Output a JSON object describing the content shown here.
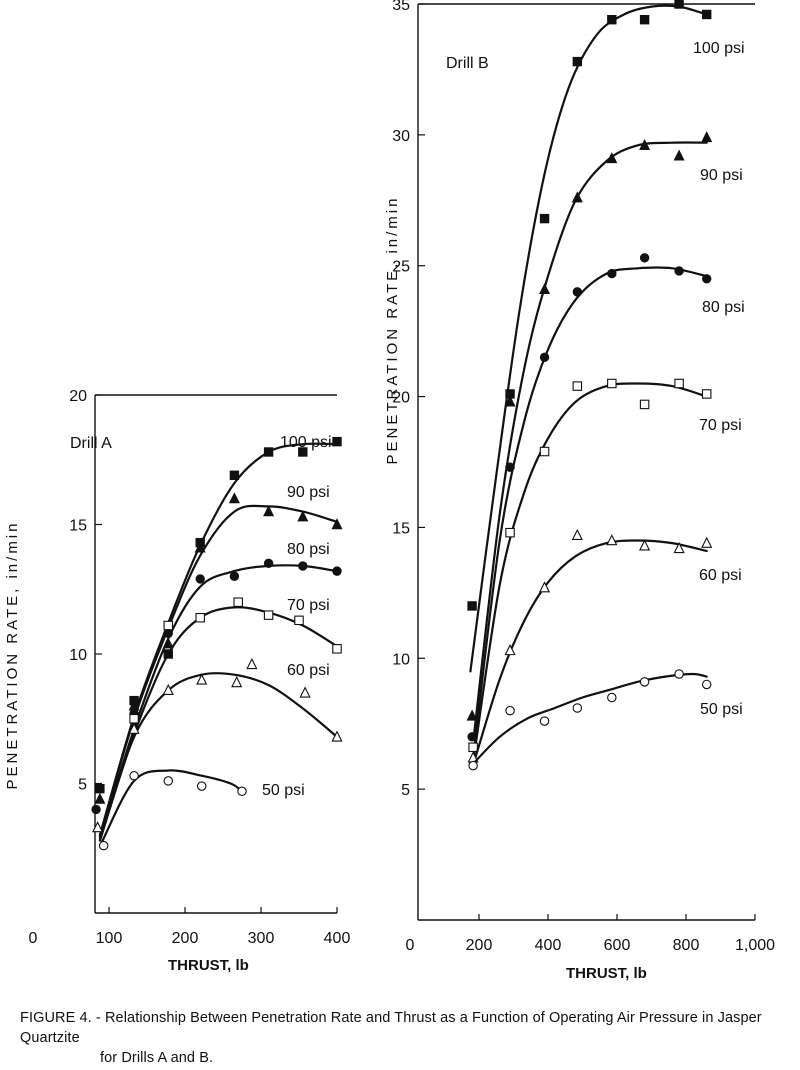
{
  "chart_data": [
    {
      "type": "scatter",
      "panel_title": "Drill A",
      "xlabel": "THRUST, lb",
      "ylabel": "PENETRATION RATE, in/min",
      "xlim": [
        0,
        400
      ],
      "ylim": [
        0,
        20
      ],
      "x_ticks": [
        "0",
        "100",
        "200",
        "300",
        "400"
      ],
      "y_ticks": [
        "5",
        "10",
        "15",
        "20"
      ],
      "y_tick_values": [
        5,
        10,
        15,
        20
      ],
      "x_tick_values": [
        0,
        100,
        200,
        300,
        400
      ],
      "grid": false,
      "series": [
        {
          "name": "100 psi",
          "marker": "filled-square",
          "points": [
            [
              88,
              4.8
            ],
            [
              133,
              8.2
            ],
            [
              178,
              10.0
            ],
            [
              220,
              14.3
            ],
            [
              265,
              16.9
            ],
            [
              310,
              17.8
            ],
            [
              355,
              17.8
            ],
            [
              400,
              18.2
            ]
          ],
          "curve": [
            [
              88,
              3.0
            ],
            [
              133,
              7.6
            ],
            [
              178,
              11.2
            ],
            [
              220,
              14.2
            ],
            [
              265,
              16.6
            ],
            [
              310,
              17.8
            ],
            [
              355,
              18.1
            ],
            [
              400,
              18.1
            ]
          ]
        },
        {
          "name": "90 psi",
          "marker": "filled-triangle",
          "points": [
            [
              88,
              4.4
            ],
            [
              133,
              8.0
            ],
            [
              178,
              10.4
            ],
            [
              220,
              14.1
            ],
            [
              265,
              16.0
            ],
            [
              310,
              15.5
            ],
            [
              355,
              15.3
            ],
            [
              400,
              15.0
            ]
          ],
          "curve": [
            [
              88,
              3.0
            ],
            [
              133,
              7.5
            ],
            [
              178,
              11.0
            ],
            [
              220,
              13.8
            ],
            [
              265,
              15.5
            ],
            [
              310,
              15.7
            ],
            [
              355,
              15.5
            ],
            [
              400,
              15.1
            ]
          ]
        },
        {
          "name": "80 psi",
          "marker": "filled-circle",
          "points": [
            [
              83,
              4.0
            ],
            [
              133,
              7.7
            ],
            [
              178,
              10.8
            ],
            [
              220,
              12.9
            ],
            [
              265,
              13.0
            ],
            [
              310,
              13.5
            ],
            [
              355,
              13.4
            ],
            [
              400,
              13.2
            ]
          ],
          "curve": [
            [
              88,
              2.9
            ],
            [
              133,
              7.1
            ],
            [
              178,
              10.6
            ],
            [
              220,
              12.6
            ],
            [
              265,
              13.2
            ],
            [
              310,
              13.4
            ],
            [
              355,
              13.4
            ],
            [
              400,
              13.2
            ]
          ]
        },
        {
          "name": "70 psi",
          "marker": "open-square",
          "points": [
            [
              133,
              7.5
            ],
            [
              178,
              11.1
            ],
            [
              220,
              11.4
            ],
            [
              270,
              12.0
            ],
            [
              310,
              11.5
            ],
            [
              350,
              11.3
            ],
            [
              400,
              10.2
            ]
          ],
          "curve": [
            [
              88,
              2.8
            ],
            [
              133,
              6.9
            ],
            [
              178,
              10.0
            ],
            [
              220,
              11.4
            ],
            [
              265,
              11.8
            ],
            [
              310,
              11.6
            ],
            [
              355,
              11.1
            ],
            [
              400,
              10.3
            ]
          ]
        },
        {
          "name": "60 psi",
          "marker": "open-triangle",
          "points": [
            [
              85,
              3.3
            ],
            [
              133,
              7.1
            ],
            [
              178,
              8.6
            ],
            [
              222,
              9.0
            ],
            [
              268,
              8.9
            ],
            [
              288,
              9.6
            ],
            [
              358,
              8.5
            ],
            [
              400,
              6.8
            ]
          ],
          "curve": [
            [
              88,
              2.8
            ],
            [
              133,
              6.8
            ],
            [
              178,
              8.6
            ],
            [
              222,
              9.2
            ],
            [
              265,
              9.2
            ],
            [
              310,
              8.8
            ],
            [
              355,
              7.9
            ],
            [
              400,
              6.8
            ]
          ]
        },
        {
          "name": "50 psi",
          "marker": "open-circle",
          "points": [
            [
              93,
              2.6
            ],
            [
              133,
              5.3
            ],
            [
              178,
              5.1
            ],
            [
              222,
              4.9
            ],
            [
              275,
              4.7
            ]
          ],
          "curve": [
            [
              90,
              2.7
            ],
            [
              133,
              5.1
            ],
            [
              178,
              5.5
            ],
            [
              222,
              5.3
            ],
            [
              260,
              5.0
            ],
            [
              275,
              4.7
            ]
          ]
        }
      ]
    },
    {
      "type": "scatter",
      "panel_title": "Drill B",
      "xlabel": "THRUST, lb",
      "ylabel": "PENETRATION RATE, in/min",
      "xlim": [
        0,
        1000
      ],
      "ylim": [
        0,
        35
      ],
      "x_ticks": [
        "0",
        "200",
        "400",
        "600",
        "800",
        "1,000"
      ],
      "x_tick_values": [
        0,
        200,
        400,
        600,
        800,
        1000
      ],
      "y_ticks": [
        "5",
        "10",
        "15",
        "20",
        "25",
        "30",
        "35"
      ],
      "y_tick_values": [
        5,
        10,
        15,
        20,
        25,
        30,
        35
      ],
      "grid": false,
      "series": [
        {
          "name": "100 psi",
          "marker": "filled-square",
          "points": [
            [
              180,
              12.0
            ],
            [
              290,
              20.1
            ],
            [
              390,
              26.8
            ],
            [
              485,
              32.8
            ],
            [
              585,
              34.4
            ],
            [
              680,
              34.4
            ],
            [
              780,
              35.0
            ],
            [
              860,
              34.6
            ]
          ],
          "curve": [
            [
              175,
              9.5
            ],
            [
              250,
              17.0
            ],
            [
              320,
              23.5
            ],
            [
              390,
              28.5
            ],
            [
              460,
              31.8
            ],
            [
              540,
              33.8
            ],
            [
              620,
              34.6
            ],
            [
              700,
              34.9
            ],
            [
              780,
              34.9
            ],
            [
              860,
              34.6
            ]
          ]
        },
        {
          "name": "90 psi",
          "marker": "filled-triangle",
          "points": [
            [
              180,
              7.8
            ],
            [
              290,
              19.8
            ],
            [
              390,
              24.1
            ],
            [
              485,
              27.6
            ],
            [
              585,
              29.1
            ],
            [
              680,
              29.6
            ],
            [
              780,
              29.2
            ],
            [
              860,
              29.9
            ]
          ],
          "curve": [
            [
              185,
              7.0
            ],
            [
              260,
              15.5
            ],
            [
              330,
              21.0
            ],
            [
              400,
              24.6
            ],
            [
              480,
              27.5
            ],
            [
              570,
              29.0
            ],
            [
              660,
              29.6
            ],
            [
              760,
              29.7
            ],
            [
              860,
              29.7
            ]
          ]
        },
        {
          "name": "80 psi",
          "marker": "filled-circle",
          "points": [
            [
              180,
              7.0
            ],
            [
              290,
              17.3
            ],
            [
              390,
              21.5
            ],
            [
              485,
              24.0
            ],
            [
              585,
              24.7
            ],
            [
              680,
              25.3
            ],
            [
              780,
              24.8
            ],
            [
              860,
              24.5
            ]
          ],
          "curve": [
            [
              185,
              6.4
            ],
            [
              260,
              14.5
            ],
            [
              330,
              19.0
            ],
            [
              400,
              21.8
            ],
            [
              480,
              23.7
            ],
            [
              570,
              24.7
            ],
            [
              660,
              24.9
            ],
            [
              760,
              24.9
            ],
            [
              860,
              24.6
            ]
          ]
        },
        {
          "name": "70 psi",
          "marker": "open-square",
          "points": [
            [
              183,
              6.6
            ],
            [
              290,
              14.8
            ],
            [
              390,
              17.9
            ],
            [
              485,
              20.4
            ],
            [
              585,
              20.5
            ],
            [
              680,
              19.7
            ],
            [
              780,
              20.5
            ],
            [
              860,
              20.1
            ]
          ],
          "curve": [
            [
              185,
              6.2
            ],
            [
              260,
              12.8
            ],
            [
              330,
              16.3
            ],
            [
              400,
              18.4
            ],
            [
              480,
              19.8
            ],
            [
              570,
              20.4
            ],
            [
              660,
              20.5
            ],
            [
              760,
              20.4
            ],
            [
              860,
              20.0
            ]
          ]
        },
        {
          "name": "60 psi",
          "marker": "open-triangle",
          "points": [
            [
              183,
              6.2
            ],
            [
              290,
              10.3
            ],
            [
              390,
              12.7
            ],
            [
              485,
              14.7
            ],
            [
              585,
              14.5
            ],
            [
              680,
              14.3
            ],
            [
              780,
              14.2
            ],
            [
              860,
              14.4
            ]
          ],
          "curve": [
            [
              185,
              6.0
            ],
            [
              260,
              9.2
            ],
            [
              330,
              11.4
            ],
            [
              400,
              12.9
            ],
            [
              480,
              13.9
            ],
            [
              570,
              14.4
            ],
            [
              660,
              14.5
            ],
            [
              760,
              14.4
            ],
            [
              860,
              14.1
            ]
          ]
        },
        {
          "name": "50 psi",
          "marker": "open-circle",
          "points": [
            [
              183,
              5.9
            ],
            [
              290,
              8.0
            ],
            [
              390,
              7.6
            ],
            [
              485,
              8.1
            ],
            [
              585,
              8.5
            ],
            [
              680,
              9.1
            ],
            [
              780,
              9.4
            ],
            [
              860,
              9.0
            ]
          ],
          "curve": [
            [
              185,
              6.0
            ],
            [
              260,
              7.0
            ],
            [
              340,
              7.7
            ],
            [
              420,
              8.1
            ],
            [
              500,
              8.5
            ],
            [
              580,
              8.8
            ],
            [
              660,
              9.1
            ],
            [
              740,
              9.3
            ],
            [
              820,
              9.4
            ],
            [
              860,
              9.3
            ]
          ]
        }
      ]
    }
  ],
  "caption": {
    "line1": "FIGURE 4. - Relationship Between Penetration Rate and Thrust as a Function of Operating Air Pressure in Jasper Quartzite",
    "line2": "for Drills A and B."
  }
}
